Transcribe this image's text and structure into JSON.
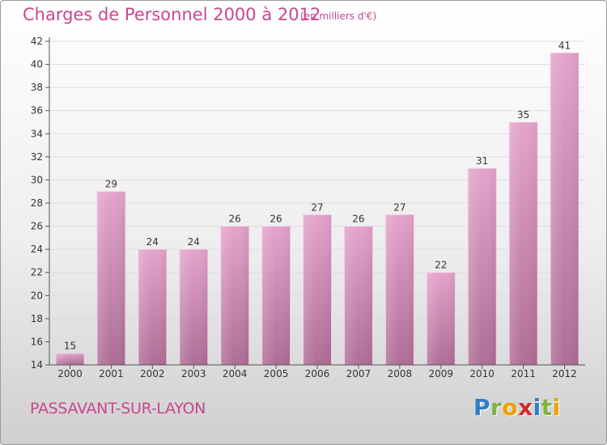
{
  "header": {
    "title": "Charges de Personnel 2000 à 2012",
    "subtitle": "(en milliers d'€)"
  },
  "footer": {
    "commune": "PASSAVANT-SUR-LAYON",
    "logo_letters": [
      "P",
      "r",
      "o",
      "x",
      "i",
      "t",
      "i"
    ]
  },
  "colors": {
    "title": "#c8478e",
    "bar_top": "#e4a3cb",
    "bar_bottom": "#ae6d95",
    "grid": "#dddddd"
  },
  "chart_data": {
    "type": "bar",
    "categories": [
      "2000",
      "2001",
      "2002",
      "2003",
      "2004",
      "2005",
      "2006",
      "2007",
      "2008",
      "2009",
      "2010",
      "2011",
      "2012"
    ],
    "values": [
      15,
      29,
      24,
      24,
      26,
      26,
      27,
      26,
      27,
      22,
      31,
      35,
      41
    ],
    "data_labels": [
      "15",
      "29",
      "24",
      "24",
      "26",
      "26",
      "27",
      "26",
      "27",
      "22",
      "31",
      "35",
      "41"
    ],
    "yticks": [
      14,
      16,
      18,
      20,
      22,
      24,
      26,
      28,
      30,
      32,
      34,
      36,
      38,
      40,
      42
    ],
    "ylim": [
      14,
      42
    ],
    "grid": true,
    "title": "Charges de Personnel 2000 à 2012"
  }
}
